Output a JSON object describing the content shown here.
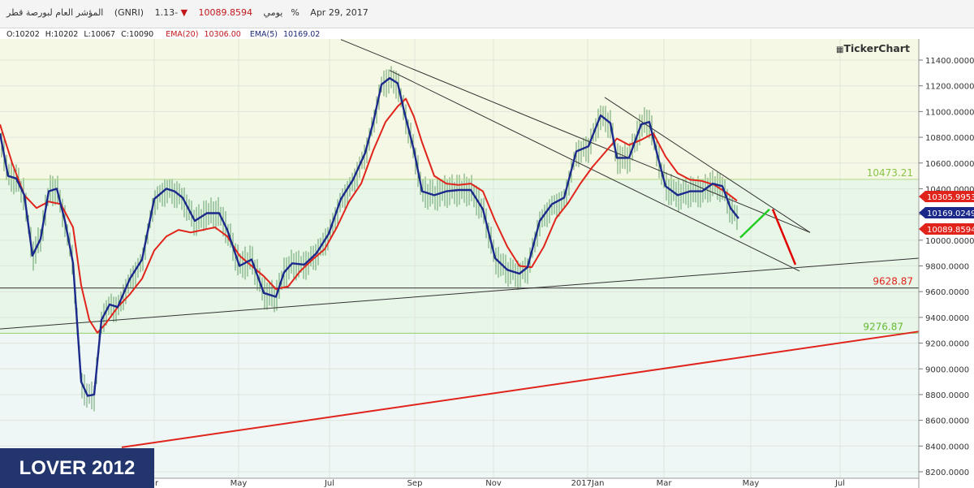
{
  "header": {
    "title": "المؤشر العام لبورصة قطر",
    "symbol": "(GNRI)",
    "interval": "يومي",
    "price": "10089.8594",
    "change": "-1.13%",
    "date": "Apr 29, 2017"
  },
  "ohlc": {
    "open": "O:10202",
    "high": "H:10202",
    "low": "L:10067",
    "close": "C:10090",
    "ema20_label": "EMA(20)",
    "ema20_value": "10306.00",
    "ema5_label": "EMA(5)",
    "ema5_value": "10169.02"
  },
  "logo": "TickerChart",
  "watermark": "LOVER 2012",
  "colors": {
    "ema20": "#e0241b",
    "ema5": "#1b2a8a",
    "candles": "#2e7d32",
    "price_tag": "#e0241b",
    "zone_upper": "#f4f8e4",
    "zone_mid": "#e8f6e8",
    "zone_lower": "#eef6f6"
  },
  "chart_data": {
    "type": "line",
    "y_axis": {
      "min": 8200,
      "max": 11500,
      "ticks": [
        "11400.0000",
        "11200.0000",
        "11000.0000",
        "10800.0000",
        "10600.0000",
        "10400.0000",
        "10200.0000",
        "10000.0000",
        "9800.0000",
        "9600.0000",
        "9400.0000",
        "9200.0000",
        "9000.0000",
        "8800.0000",
        "8600.0000",
        "8400.0000",
        "8200.0000"
      ],
      "tick_values": [
        11400,
        11200,
        11000,
        10800,
        10600,
        10400,
        10200,
        10000,
        9800,
        9600,
        9400,
        9200,
        9000,
        8800,
        8600,
        8400,
        8200
      ]
    },
    "x_axis": {
      "labels": [
        "ar",
        "May",
        "Jul",
        "Sep",
        "Nov",
        "2017Jan",
        "Mar",
        "May",
        "Jul"
      ]
    },
    "levels": [
      {
        "value": 10473.21,
        "label": "10473.21",
        "color": "#8bc34a"
      },
      {
        "value": 9628.87,
        "label": "9628.87",
        "color": "#e0241b"
      },
      {
        "value": 9276.87,
        "label": "9276.87",
        "color": "#66bb33"
      }
    ],
    "price_tags": [
      {
        "value": 10305.9953,
        "label": "10305.9953",
        "color": "#e0241b"
      },
      {
        "value": 10169.0249,
        "label": "10169.0249",
        "color": "#1b2a8a"
      },
      {
        "value": 10089.8594,
        "label": "10089.8594",
        "color": "#e0241b"
      }
    ],
    "trendlines": [
      {
        "name": "downtrend-upper",
        "color": "#333333",
        "points": [
          [
            420,
            11560
          ],
          [
            998,
            10060
          ]
        ]
      },
      {
        "name": "downtrend-lower",
        "color": "#333333",
        "points": [
          [
            480,
            11320
          ],
          [
            985,
            9760
          ]
        ]
      },
      {
        "name": "recent-upper",
        "color": "#333333",
        "points": [
          [
            745,
            11110
          ],
          [
            998,
            10060
          ]
        ]
      },
      {
        "name": "support-rising",
        "color": "#333333",
        "points": [
          [
            0,
            9310
          ],
          [
            1132,
            9860
          ]
        ]
      },
      {
        "name": "long-term-rising",
        "color": "#e0241b",
        "points": [
          [
            150,
            8390
          ],
          [
            1132,
            9290
          ]
        ]
      }
    ],
    "projections": [
      {
        "name": "projection-up",
        "color": "#22cc22",
        "points": [
          [
            912,
            10020
          ],
          [
            948,
            10240
          ]
        ]
      },
      {
        "name": "projection-down",
        "color": "#e00000",
        "points": [
          [
            952,
            10240
          ],
          [
            980,
            9810
          ]
        ]
      }
    ],
    "series": [
      {
        "name": "EMA(20)",
        "color": "#e0241b",
        "points": [
          [
            0,
            10900
          ],
          [
            15,
            10600
          ],
          [
            30,
            10350
          ],
          [
            45,
            10250
          ],
          [
            60,
            10300
          ],
          [
            75,
            10280
          ],
          [
            90,
            10100
          ],
          [
            100,
            9650
          ],
          [
            110,
            9380
          ],
          [
            120,
            9280
          ],
          [
            130,
            9350
          ],
          [
            145,
            9480
          ],
          [
            160,
            9580
          ],
          [
            175,
            9700
          ],
          [
            190,
            9920
          ],
          [
            205,
            10030
          ],
          [
            220,
            10080
          ],
          [
            235,
            10060
          ],
          [
            250,
            10080
          ],
          [
            265,
            10100
          ],
          [
            280,
            10030
          ],
          [
            295,
            9880
          ],
          [
            310,
            9800
          ],
          [
            325,
            9720
          ],
          [
            340,
            9620
          ],
          [
            355,
            9640
          ],
          [
            370,
            9760
          ],
          [
            385,
            9850
          ],
          [
            400,
            9930
          ],
          [
            415,
            10100
          ],
          [
            430,
            10300
          ],
          [
            445,
            10440
          ],
          [
            460,
            10700
          ],
          [
            475,
            10920
          ],
          [
            490,
            11040
          ],
          [
            500,
            11100
          ],
          [
            510,
            10960
          ],
          [
            520,
            10760
          ],
          [
            535,
            10500
          ],
          [
            550,
            10440
          ],
          [
            565,
            10430
          ],
          [
            580,
            10440
          ],
          [
            595,
            10380
          ],
          [
            610,
            10150
          ],
          [
            625,
            9950
          ],
          [
            640,
            9800
          ],
          [
            655,
            9790
          ],
          [
            670,
            9950
          ],
          [
            685,
            10170
          ],
          [
            700,
            10290
          ],
          [
            715,
            10440
          ],
          [
            730,
            10570
          ],
          [
            745,
            10680
          ],
          [
            760,
            10790
          ],
          [
            775,
            10740
          ],
          [
            790,
            10780
          ],
          [
            805,
            10830
          ],
          [
            820,
            10650
          ],
          [
            835,
            10520
          ],
          [
            850,
            10470
          ],
          [
            865,
            10460
          ],
          [
            880,
            10430
          ],
          [
            895,
            10370
          ],
          [
            908,
            10306
          ]
        ]
      },
      {
        "name": "EMA(5)",
        "color": "#1b2a8a",
        "points": [
          [
            0,
            10830
          ],
          [
            10,
            10500
          ],
          [
            20,
            10480
          ],
          [
            30,
            10350
          ],
          [
            40,
            9880
          ],
          [
            50,
            10010
          ],
          [
            60,
            10380
          ],
          [
            70,
            10400
          ],
          [
            80,
            10150
          ],
          [
            90,
            9820
          ],
          [
            100,
            8900
          ],
          [
            108,
            8790
          ],
          [
            116,
            8800
          ],
          [
            125,
            9380
          ],
          [
            135,
            9500
          ],
          [
            145,
            9480
          ],
          [
            160,
            9700
          ],
          [
            175,
            9850
          ],
          [
            190,
            10320
          ],
          [
            205,
            10400
          ],
          [
            215,
            10380
          ],
          [
            225,
            10330
          ],
          [
            240,
            10150
          ],
          [
            255,
            10210
          ],
          [
            270,
            10210
          ],
          [
            280,
            10080
          ],
          [
            295,
            9800
          ],
          [
            310,
            9850
          ],
          [
            325,
            9590
          ],
          [
            340,
            9560
          ],
          [
            350,
            9750
          ],
          [
            360,
            9820
          ],
          [
            375,
            9810
          ],
          [
            390,
            9900
          ],
          [
            405,
            10050
          ],
          [
            420,
            10320
          ],
          [
            435,
            10470
          ],
          [
            450,
            10680
          ],
          [
            460,
            10920
          ],
          [
            470,
            11210
          ],
          [
            480,
            11260
          ],
          [
            490,
            11220
          ],
          [
            498,
            11000
          ],
          [
            510,
            10700
          ],
          [
            520,
            10380
          ],
          [
            535,
            10350
          ],
          [
            550,
            10380
          ],
          [
            565,
            10390
          ],
          [
            580,
            10390
          ],
          [
            595,
            10240
          ],
          [
            610,
            9860
          ],
          [
            625,
            9770
          ],
          [
            640,
            9740
          ],
          [
            650,
            9790
          ],
          [
            665,
            10150
          ],
          [
            680,
            10280
          ],
          [
            695,
            10330
          ],
          [
            710,
            10690
          ],
          [
            725,
            10730
          ],
          [
            740,
            10970
          ],
          [
            752,
            10910
          ],
          [
            760,
            10640
          ],
          [
            775,
            10640
          ],
          [
            790,
            10900
          ],
          [
            800,
            10920
          ],
          [
            810,
            10660
          ],
          [
            820,
            10420
          ],
          [
            835,
            10350
          ],
          [
            850,
            10380
          ],
          [
            865,
            10380
          ],
          [
            878,
            10440
          ],
          [
            890,
            10420
          ],
          [
            900,
            10250
          ],
          [
            910,
            10169
          ]
        ]
      }
    ]
  }
}
